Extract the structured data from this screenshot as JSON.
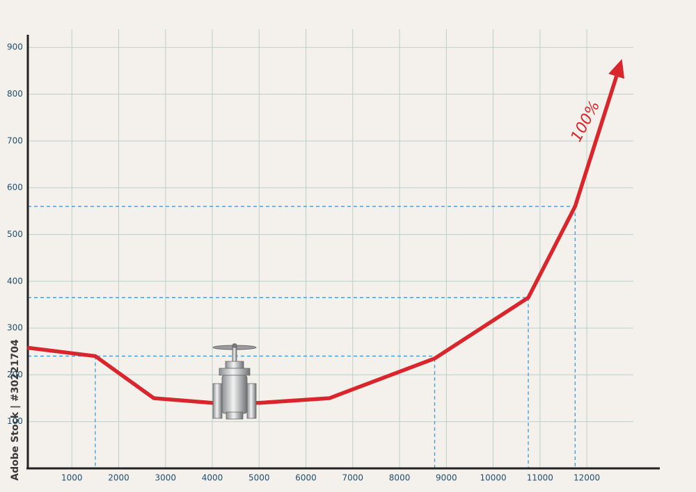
{
  "chart_data": {
    "type": "line",
    "x": [
      50,
      1500,
      2750,
      4000,
      5000,
      6500,
      8750,
      10750,
      11750,
      12750
    ],
    "values": [
      258,
      240,
      150,
      140,
      140,
      150,
      235,
      365,
      560,
      875
    ],
    "color": "#d9262c",
    "xlim": [
      0,
      13500
    ],
    "ylim": [
      0,
      930
    ],
    "xticks": [
      1000,
      2000,
      3000,
      4000,
      5000,
      6000,
      7000,
      8000,
      9000,
      10000,
      11000,
      12000
    ],
    "yticks": [
      100,
      200,
      300,
      400,
      500,
      600,
      700,
      800,
      900
    ],
    "grid": true,
    "reference_x": [
      1500,
      8750,
      10750,
      11750
    ],
    "reference_y": [
      240,
      365,
      560
    ],
    "annotation": "100%",
    "watermark": "Adobe Stock | #30221704"
  }
}
